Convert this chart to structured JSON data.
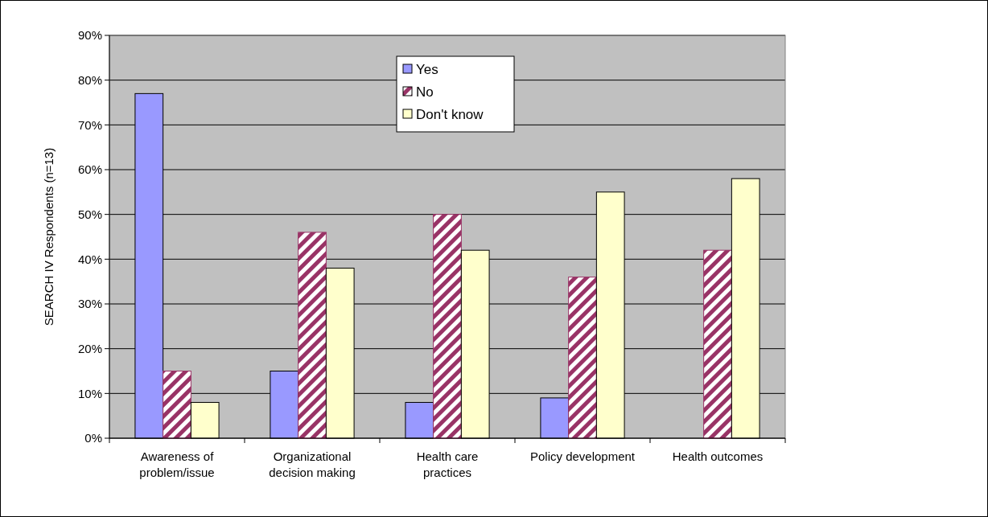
{
  "chart_data": {
    "type": "bar",
    "ylabel": "SEARCH IV Respondents (n=13)",
    "categories": [
      "Awareness of problem/issue",
      "Organizational decision making",
      "Health care practices",
      "Policy development",
      "Health outcomes"
    ],
    "series": [
      {
        "name": "Yes",
        "color": "#9999ff",
        "values": [
          77,
          15,
          8,
          9,
          0
        ]
      },
      {
        "name": "No",
        "color": "#993366",
        "values": [
          15,
          46,
          50,
          36,
          42
        ]
      },
      {
        "name": "Don't know",
        "color": "#ffffcc",
        "values": [
          8,
          38,
          42,
          55,
          58
        ]
      }
    ],
    "ylim": [
      0,
      90
    ],
    "yticks": [
      {
        "value": 0,
        "label": "0%"
      },
      {
        "value": 10,
        "label": "10%"
      },
      {
        "value": 20,
        "label": "20%"
      },
      {
        "value": 30,
        "label": "30%"
      },
      {
        "value": 40,
        "label": "40%"
      },
      {
        "value": 50,
        "label": "50%"
      },
      {
        "value": 60,
        "label": "60%"
      },
      {
        "value": 70,
        "label": "70%"
      },
      {
        "value": 80,
        "label": "80%"
      },
      {
        "value": 90,
        "label": "90%"
      }
    ],
    "grid": "y",
    "legend": "top"
  }
}
